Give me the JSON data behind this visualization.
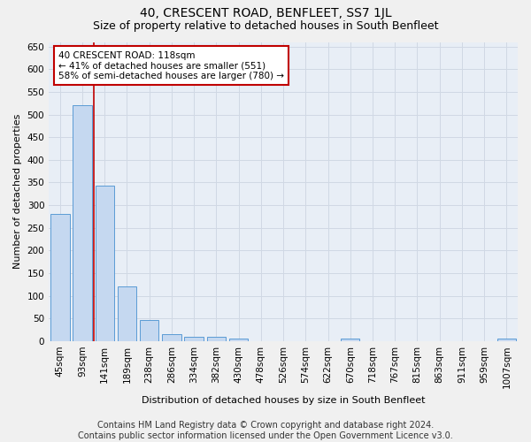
{
  "title": "40, CRESCENT ROAD, BENFLEET, SS7 1JL",
  "subtitle": "Size of property relative to detached houses in South Benfleet",
  "xlabel": "Distribution of detached houses by size in South Benfleet",
  "ylabel": "Number of detached properties",
  "footer_line1": "Contains HM Land Registry data © Crown copyright and database right 2024.",
  "footer_line2": "Contains public sector information licensed under the Open Government Licence v3.0.",
  "categories": [
    "45sqm",
    "93sqm",
    "141sqm",
    "189sqm",
    "238sqm",
    "286sqm",
    "334sqm",
    "382sqm",
    "430sqm",
    "478sqm",
    "526sqm",
    "574sqm",
    "622sqm",
    "670sqm",
    "718sqm",
    "767sqm",
    "815sqm",
    "863sqm",
    "911sqm",
    "959sqm",
    "1007sqm"
  ],
  "values": [
    280,
    521,
    343,
    120,
    47,
    16,
    10,
    9,
    5,
    0,
    0,
    0,
    0,
    5,
    0,
    0,
    0,
    0,
    0,
    0,
    5
  ],
  "bar_color": "#c5d8f0",
  "bar_edge_color": "#5b9bd5",
  "highlight_line_color": "#c00000",
  "annotation_text": "40 CRESCENT ROAD: 118sqm\n← 41% of detached houses are smaller (551)\n58% of semi-detached houses are larger (780) →",
  "annotation_box_color": "#ffffff",
  "annotation_box_edge_color": "#c00000",
  "ylim": [
    0,
    660
  ],
  "yticks": [
    0,
    50,
    100,
    150,
    200,
    250,
    300,
    350,
    400,
    450,
    500,
    550,
    600,
    650
  ],
  "grid_color": "#d0d8e4",
  "background_color": "#e8eef6",
  "figure_background": "#f0f0f0",
  "title_fontsize": 10,
  "subtitle_fontsize": 9,
  "axis_label_fontsize": 8,
  "tick_fontsize": 7.5,
  "footer_fontsize": 7,
  "annotation_fontsize": 7.5
}
